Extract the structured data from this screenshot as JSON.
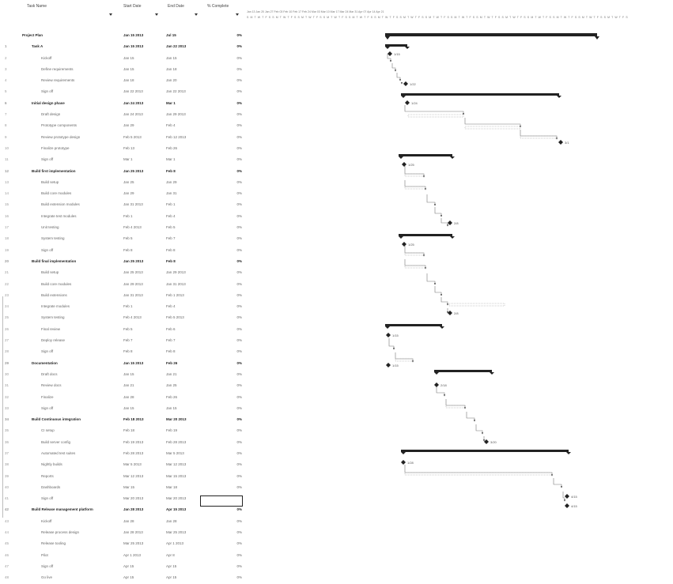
{
  "grid": {
    "columns": {
      "name": "Task Name",
      "start": "Start Date",
      "end": "End Date",
      "complete": "% Complete"
    },
    "rows": [
      {
        "num": "",
        "name": "Project Plan",
        "start": "Jan 15 2013",
        "end": "Jul 15",
        "pct": "0%",
        "summary": true,
        "indent": 0
      },
      {
        "num": "1",
        "name": "Task A",
        "start": "Jan 15 2013",
        "end": "Jan 22 2013",
        "pct": "0%",
        "summary": true,
        "indent": 1
      },
      {
        "num": "2",
        "name": "Kickoff",
        "start": "Jan 15",
        "end": "Jan 15",
        "pct": "0%",
        "summary": false,
        "indent": 2
      },
      {
        "num": "3",
        "name": "Define requirements",
        "start": "Jan 15",
        "end": "Jan 18",
        "pct": "0%",
        "summary": false,
        "indent": 2
      },
      {
        "num": "4",
        "name": "Review requirements",
        "start": "Jan 18",
        "end": "Jan 20",
        "pct": "0%",
        "summary": false,
        "indent": 2
      },
      {
        "num": "5",
        "name": "Sign off",
        "start": "Jan 22 2013",
        "end": "Jan 22 2013",
        "pct": "0%",
        "summary": false,
        "indent": 2
      },
      {
        "num": "6",
        "name": "Initial design phase",
        "start": "Jan 24 2013",
        "end": "Mar 1",
        "pct": "0%",
        "summary": true,
        "indent": 1
      },
      {
        "num": "7",
        "name": "Draft design",
        "start": "Jan 24 2013",
        "end": "Jan 29 2013",
        "pct": "0%",
        "summary": false,
        "indent": 2
      },
      {
        "num": "8",
        "name": "Prototype components",
        "start": "Jan 29",
        "end": "Feb 4",
        "pct": "0%",
        "summary": false,
        "indent": 2
      },
      {
        "num": "9",
        "name": "Review prototype design",
        "start": "Feb 5 2013",
        "end": "Feb 12 2013",
        "pct": "0%",
        "summary": false,
        "indent": 2
      },
      {
        "num": "10",
        "name": "Finalize prototype",
        "start": "Feb 13",
        "end": "Feb 26",
        "pct": "0%",
        "summary": false,
        "indent": 2
      },
      {
        "num": "11",
        "name": "Sign off",
        "start": "Mar 1",
        "end": "Mar 1",
        "pct": "0%",
        "summary": false,
        "indent": 2
      },
      {
        "num": "12",
        "name": "Build first implementation",
        "start": "Jan 25 2013",
        "end": "Feb 8",
        "pct": "0%",
        "summary": true,
        "indent": 1
      },
      {
        "num": "13",
        "name": "Build setup",
        "start": "Jan 25",
        "end": "Jan 29",
        "pct": "0%",
        "summary": false,
        "indent": 2
      },
      {
        "num": "14",
        "name": "Build core modules",
        "start": "Jan 29",
        "end": "Jan 31",
        "pct": "0%",
        "summary": false,
        "indent": 2
      },
      {
        "num": "15",
        "name": "Build extension modules",
        "start": "Jan 31 2013",
        "end": "Feb 1",
        "pct": "0%",
        "summary": false,
        "indent": 2
      },
      {
        "num": "16",
        "name": "Integrate test modules",
        "start": "Feb 1",
        "end": "Feb 4",
        "pct": "0%",
        "summary": false,
        "indent": 2
      },
      {
        "num": "17",
        "name": "Unit testing",
        "start": "Feb 4 2013",
        "end": "Feb 5",
        "pct": "0%",
        "summary": false,
        "indent": 2
      },
      {
        "num": "18",
        "name": "System testing",
        "start": "Feb 5",
        "end": "Feb 7",
        "pct": "0%",
        "summary": false,
        "indent": 2
      },
      {
        "num": "19",
        "name": "Sign off",
        "start": "Feb 8",
        "end": "Feb 8",
        "pct": "0%",
        "summary": false,
        "indent": 2
      },
      {
        "num": "20",
        "name": "Build final implementation",
        "start": "Jan 25 2013",
        "end": "Feb 8",
        "pct": "0%",
        "summary": true,
        "indent": 1
      },
      {
        "num": "21",
        "name": "Build setup",
        "start": "Jan 25 2013",
        "end": "Jan 29 2013",
        "pct": "0%",
        "summary": false,
        "indent": 2
      },
      {
        "num": "22",
        "name": "Build core modules",
        "start": "Jan 29 2013",
        "end": "Jan 31 2013",
        "pct": "0%",
        "summary": false,
        "indent": 2
      },
      {
        "num": "23",
        "name": "Build extensions",
        "start": "Jan 31 2013",
        "end": "Feb 1 2013",
        "pct": "0%",
        "summary": false,
        "indent": 2
      },
      {
        "num": "24",
        "name": "Integrate modules",
        "start": "Feb 1",
        "end": "Feb 4",
        "pct": "0%",
        "summary": false,
        "indent": 2
      },
      {
        "num": "25",
        "name": "System testing",
        "start": "Feb 4 2013",
        "end": "Feb 5 2013",
        "pct": "0%",
        "summary": false,
        "indent": 2
      },
      {
        "num": "26",
        "name": "Final review",
        "start": "Feb 5",
        "end": "Feb 6",
        "pct": "0%",
        "summary": false,
        "indent": 2
      },
      {
        "num": "27",
        "name": "Deploy release",
        "start": "Feb 7",
        "end": "Feb 7",
        "pct": "0%",
        "summary": false,
        "indent": 2
      },
      {
        "num": "28",
        "name": "Sign off",
        "start": "Feb 8",
        "end": "Feb 8",
        "pct": "0%",
        "summary": false,
        "indent": 2
      },
      {
        "num": "29",
        "name": "Documentation",
        "start": "Jan 15 2013",
        "end": "Feb 26",
        "pct": "0%",
        "summary": true,
        "indent": 1
      },
      {
        "num": "30",
        "name": "Draft docs",
        "start": "Jan 15",
        "end": "Jan 21",
        "pct": "0%",
        "summary": false,
        "indent": 2
      },
      {
        "num": "31",
        "name": "Review docs",
        "start": "Jan 21",
        "end": "Jan 25",
        "pct": "0%",
        "summary": false,
        "indent": 2
      },
      {
        "num": "32",
        "name": "Finalize",
        "start": "Jan 28",
        "end": "Feb 26",
        "pct": "0%",
        "summary": false,
        "indent": 2
      },
      {
        "num": "33",
        "name": "Sign off",
        "start": "Jan 15",
        "end": "Jan 15",
        "pct": "0%",
        "summary": false,
        "indent": 2
      },
      {
        "num": "34",
        "name": "Build Continuous integration",
        "start": "Feb 18 2013",
        "end": "Mar 20 2013",
        "pct": "0%",
        "summary": true,
        "indent": 1
      },
      {
        "num": "35",
        "name": "CI setup",
        "start": "Feb 18",
        "end": "Feb 19",
        "pct": "0%",
        "summary": false,
        "indent": 2
      },
      {
        "num": "36",
        "name": "Build server config",
        "start": "Feb 19 2013",
        "end": "Feb 28 2013",
        "pct": "0%",
        "summary": false,
        "indent": 2
      },
      {
        "num": "37",
        "name": "Automated test suites",
        "start": "Feb 28 2013",
        "end": "Mar 5 2013",
        "pct": "0%",
        "summary": false,
        "indent": 2
      },
      {
        "num": "38",
        "name": "Nightly builds",
        "start": "Mar 5 2013",
        "end": "Mar 12 2013",
        "pct": "0%",
        "summary": false,
        "indent": 2
      },
      {
        "num": "39",
        "name": "Reports",
        "start": "Mar 12 2013",
        "end": "Mar 15 2013",
        "pct": "0%",
        "summary": false,
        "indent": 2
      },
      {
        "num": "40",
        "name": "Dashboards",
        "start": "Mar 15",
        "end": "Mar 18",
        "pct": "0%",
        "summary": false,
        "indent": 2
      },
      {
        "num": "41",
        "name": "Sign off",
        "start": "Mar 20 2013",
        "end": "Mar 20 2013",
        "pct": "0%",
        "summary": false,
        "indent": 2
      },
      {
        "num": "42",
        "name": "Build Release management platform",
        "start": "Jan 28 2013",
        "end": "Apr 15 2013",
        "pct": "0%",
        "summary": true,
        "indent": 1
      },
      {
        "num": "43",
        "name": "Kickoff",
        "start": "Jan 28",
        "end": "Jan 28",
        "pct": "0%",
        "summary": false,
        "indent": 2
      },
      {
        "num": "44",
        "name": "Release process design",
        "start": "Jan 28 2013",
        "end": "Mar 25 2013",
        "pct": "0%",
        "summary": false,
        "indent": 2
      },
      {
        "num": "45",
        "name": "Release tooling",
        "start": "Mar 25 2013",
        "end": "Apr 1 2013",
        "pct": "0%",
        "summary": false,
        "indent": 2
      },
      {
        "num": "46",
        "name": "Pilot",
        "start": "Apr 1 2013",
        "end": "Apr 8",
        "pct": "0%",
        "summary": false,
        "indent": 2
      },
      {
        "num": "47",
        "name": "Sign off",
        "start": "Apr 15",
        "end": "Apr 15",
        "pct": "0%",
        "summary": false,
        "indent": 2
      },
      {
        "num": "48",
        "name": "Go live",
        "start": "Apr 15",
        "end": "Apr 15",
        "pct": "0%",
        "summary": false,
        "indent": 2
      }
    ]
  },
  "timeline": {
    "top": "Jan 13     Jan 20     Jan 27     Feb 03     Feb 10     Feb 17     Feb 24     Mar 03     Mar 10     Mar 17     Mar 24     Mar 31     Apr 07     Apr 14     Apr 21",
    "bottom": "S M T W T F S S M T W T F S S M T W T F S S M T W T F S S M T W T F S S M T W T F S S M T W T F S S M T W T F S S M T W T F S S M T W T F S S M T W T F S S M T W T F S S M T W T F S S M T W T F S S M T W T F S"
  },
  "milestone_labels": {
    "m1": "1/15",
    "m2": "1/22",
    "m3": "1/24",
    "m4": "3/1",
    "m5": "1/25",
    "m6": "2/8",
    "m7": "1/25",
    "m8": "2/8",
    "m9": "1/15",
    "m10": "1/15",
    "m11": "2/18",
    "m12": "3/20",
    "m13": "1/28",
    "m14": "4/15",
    "m15": "4/15"
  },
  "colors": {
    "bar": "#222222",
    "link": "#777777",
    "grid_text": "#666666"
  }
}
